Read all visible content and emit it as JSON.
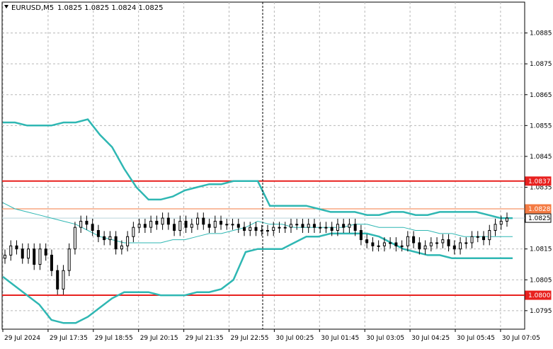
{
  "header": {
    "symbol": "EURUSD,M5",
    "ohlc": "1.0825 1.0825 1.0824 1.0825"
  },
  "chart_data": {
    "type": "candlestick",
    "symbol": "EURUSD",
    "timeframe": "M5",
    "ylim": [
      1.0789,
      1.0895
    ],
    "y_ticks": [
      "1.0885",
      "1.0875",
      "1.0865",
      "1.0855",
      "1.0845",
      "1.0835",
      "1.0815",
      "1.0805",
      "1.0795"
    ],
    "x_ticks": [
      "29 Jul 2024",
      "29 Jul 17:35",
      "29 Jul 18:55",
      "29 Jul 20:15",
      "29 Jul 21:35",
      "29 Jul 22:55",
      "30 Jul 00:25",
      "30 Jul 01:45",
      "30 Jul 03:05",
      "30 Jul 04:25",
      "30 Jul 05:45",
      "30 Jul 07:05"
    ],
    "grid": true,
    "horizontal_levels": [
      {
        "price": 1.0837,
        "label": "1.0837",
        "color": "#e8211f"
      },
      {
        "price": 1.08,
        "label": "1.0800",
        "color": "#e8211f"
      }
    ],
    "price_tags": [
      {
        "price": 1.0828,
        "label": "1.0828",
        "color": "#f47b43",
        "text_color": "#ffffff"
      },
      {
        "price": 1.0825,
        "label": "1.0825",
        "color": "#ffffff",
        "text_color": "#000000"
      }
    ],
    "bands": {
      "color": "#2fb7b3",
      "upper": [
        1.0856,
        1.0856,
        1.0855,
        1.0855,
        1.0855,
        1.0856,
        1.0856,
        1.0857,
        1.0852,
        1.0848,
        1.0841,
        1.0835,
        1.0831,
        1.0831,
        1.0832,
        1.0834,
        1.0835,
        1.0836,
        1.0836,
        1.0837,
        1.0837,
        1.0837,
        1.0829,
        1.0829,
        1.0829,
        1.0829,
        1.0828,
        1.0827,
        1.0827,
        1.0827,
        1.0826,
        1.0826,
        1.0827,
        1.0827,
        1.0826,
        1.0826,
        1.0827,
        1.0827,
        1.0827,
        1.0827,
        1.0826,
        1.0825,
        1.0825
      ],
      "middle": [
        1.083,
        1.0828,
        1.0827,
        1.0826,
        1.0825,
        1.0824,
        1.0823,
        1.0821,
        1.0819,
        1.0818,
        1.0817,
        1.0817,
        1.0817,
        1.0817,
        1.0818,
        1.0818,
        1.0819,
        1.082,
        1.082,
        1.0821,
        1.0822,
        1.0824,
        1.0823,
        1.0823,
        1.0822,
        1.0822,
        1.0822,
        1.0822,
        1.0822,
        1.0823,
        1.0823,
        1.0822,
        1.0822,
        1.0822,
        1.0821,
        1.0821,
        1.082,
        1.082,
        1.0819,
        1.0819,
        1.0819,
        1.0819,
        1.0819
      ],
      "lower": [
        1.0806,
        1.0803,
        1.08,
        1.0797,
        1.0792,
        1.0791,
        1.0791,
        1.0793,
        1.0796,
        1.0799,
        1.0801,
        1.0801,
        1.0801,
        1.08,
        1.08,
        1.08,
        1.0801,
        1.0801,
        1.0802,
        1.0805,
        1.0814,
        1.0815,
        1.0815,
        1.0815,
        1.0817,
        1.0819,
        1.0819,
        1.082,
        1.082,
        1.082,
        1.082,
        1.0819,
        1.0817,
        1.0815,
        1.0814,
        1.0813,
        1.0813,
        1.0812,
        1.0812,
        1.0812,
        1.0812,
        1.0812,
        1.0812
      ]
    },
    "candles_close": [
      1.0813,
      1.0816,
      1.0815,
      1.0812,
      1.0815,
      1.081,
      1.0815,
      1.0813,
      1.0808,
      1.0802,
      1.0808,
      1.0815,
      1.0822,
      1.0824,
      1.0823,
      1.0821,
      1.0819,
      1.0818,
      1.0819,
      1.0815,
      1.0816,
      1.0819,
      1.0822,
      1.0823,
      1.0822,
      1.0824,
      1.0823,
      1.0825,
      1.0823,
      1.0821,
      1.0824,
      1.0822,
      1.0823,
      1.0825,
      1.0823,
      1.0822,
      1.0824,
      1.0823,
      1.0823,
      1.0823,
      1.0822,
      1.0821,
      1.0822,
      1.0821,
      1.0821,
      1.0821,
      1.0822,
      1.0822,
      1.0822,
      1.0823,
      1.0823,
      1.0822,
      1.0823,
      1.0822,
      1.0822,
      1.0822,
      1.0821,
      1.0823,
      1.0822,
      1.0823,
      1.0821,
      1.0818,
      1.0817,
      1.0816,
      1.0816,
      1.0817,
      1.0817,
      1.0816,
      1.0816,
      1.0819,
      1.0817,
      1.0815,
      1.0816,
      1.0817,
      1.0817,
      1.0818,
      1.0816,
      1.0815,
      1.0817,
      1.0817,
      1.0819,
      1.0819,
      1.0818,
      1.0821,
      1.0823,
      1.0824,
      1.0825
    ]
  }
}
